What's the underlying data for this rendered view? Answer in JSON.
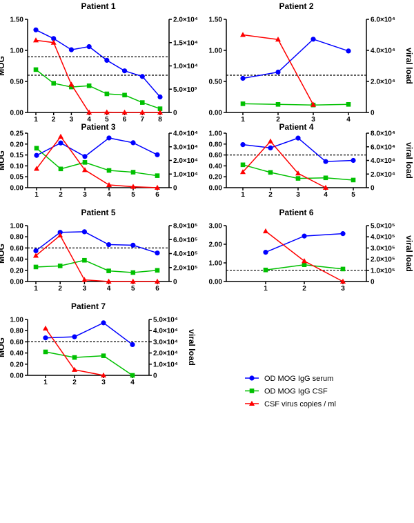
{
  "chart_data": {
    "type": "line",
    "legend": {
      "placement": "bottom-right",
      "entries": [
        {
          "name": "OD MOG IgG serum",
          "color": "#0000ff",
          "marker": "circle"
        },
        {
          "name": "OD MOG IgG CSF",
          "color": "#00c000",
          "marker": "square"
        },
        {
          "name": "CSF virus copies / ml",
          "color": "#ff0000",
          "marker": "triangle"
        }
      ]
    },
    "threshold": 0.6,
    "panels": [
      {
        "title": "Patient 1",
        "ylabel": "MOG",
        "y2label": "",
        "categories": [
          "1",
          "2",
          "3",
          "4",
          "5",
          "6",
          "7",
          "8"
        ],
        "ylim": [
          0,
          1.5
        ],
        "yticks": [
          0,
          0.5,
          1.0,
          1.5
        ],
        "ytick_labels": [
          "0.00",
          "0.50",
          "1.00",
          "1.50"
        ],
        "y2lim": [
          0,
          20000
        ],
        "y2ticks": [
          0,
          5000,
          10000,
          15000,
          20000
        ],
        "y2tick_labels": [
          "0",
          "5.0×10³",
          "1.0×10⁴",
          "1.5×10⁴",
          "2.0×10⁴"
        ],
        "serum": [
          1.33,
          1.19,
          1.01,
          1.06,
          0.84,
          0.67,
          0.58,
          0.25
        ],
        "csf": [
          0.69,
          0.47,
          0.41,
          0.43,
          0.3,
          0.28,
          0.16,
          0.06
        ],
        "virus": [
          15500,
          15000,
          6000,
          0,
          50,
          0,
          0,
          0
        ]
      },
      {
        "title": "Patient 2",
        "ylabel": "",
        "y2label": "viral load",
        "categories": [
          "1",
          "2",
          "3",
          "4"
        ],
        "ylim": [
          0,
          1.5
        ],
        "yticks": [
          0,
          0.5,
          1.0,
          1.5
        ],
        "ytick_labels": [
          "0.00",
          "0.50",
          "1.00",
          "1.50"
        ],
        "y2lim": [
          0,
          60000
        ],
        "y2ticks": [
          0,
          20000,
          40000,
          60000
        ],
        "y2tick_labels": [
          "0",
          "2.0×10⁴",
          "4.0×10⁴",
          "6.0×10⁴"
        ],
        "serum": [
          0.55,
          0.65,
          1.18,
          0.99
        ],
        "csf": [
          0.14,
          0.13,
          0.12,
          0.13
        ],
        "virus": [
          50000,
          47000,
          5000,
          null
        ]
      },
      {
        "title": "Patient 3",
        "ylabel": "MOG",
        "y2label": "",
        "categories": [
          "1",
          "2",
          "3",
          "4",
          "5",
          "6"
        ],
        "ylim": [
          0,
          0.25
        ],
        "yticks": [
          0,
          0.05,
          0.1,
          0.15,
          0.2,
          0.25
        ],
        "ytick_labels": [
          "0.00",
          "0.05",
          "0.10",
          "0.15",
          "0.20",
          "0.25"
        ],
        "y2lim": [
          0,
          40000
        ],
        "y2ticks": [
          0,
          10000,
          20000,
          30000,
          40000
        ],
        "y2tick_labels": [
          "0",
          "1.0×10⁴",
          "2.0×10⁴",
          "3.0×10⁴",
          "4.0×10⁴"
        ],
        "serum": [
          0.148,
          0.205,
          0.143,
          0.228,
          0.206,
          0.151
        ],
        "csf": [
          0.181,
          0.086,
          0.116,
          0.079,
          0.071,
          0.055
        ],
        "virus": [
          13900,
          37500,
          13000,
          2000,
          700,
          0
        ]
      },
      {
        "title": "Patient 4",
        "ylabel": "",
        "y2label": "viral load",
        "categories": [
          "1",
          "2",
          "3",
          "4",
          "5"
        ],
        "ylim": [
          0,
          1.0
        ],
        "yticks": [
          0,
          0.2,
          0.4,
          0.6,
          0.8,
          1.0
        ],
        "ytick_labels": [
          "0.00",
          "0.20",
          "0.40",
          "0.60",
          "0.80",
          "1.00"
        ],
        "y2lim": [
          0,
          80000
        ],
        "y2ticks": [
          0,
          20000,
          40000,
          60000,
          80000
        ],
        "y2tick_labels": [
          "0",
          "2.0×10⁴",
          "4.0×10⁴",
          "6.0×10⁴",
          "8.0×10⁴"
        ],
        "serum": [
          0.79,
          0.73,
          0.91,
          0.48,
          0.5
        ],
        "csf": [
          0.42,
          0.28,
          0.17,
          0.18,
          0.14
        ],
        "virus": [
          23000,
          68000,
          21000,
          0,
          null
        ]
      },
      {
        "title": "Patient 5",
        "ylabel": "MOG",
        "y2label": "",
        "categories": [
          "1",
          "2",
          "3",
          "4",
          "5",
          "6"
        ],
        "ylim": [
          0,
          1.0
        ],
        "yticks": [
          0,
          0.2,
          0.4,
          0.6,
          0.8,
          1.0
        ],
        "ytick_labels": [
          "0.00",
          "0.20",
          "0.40",
          "0.60",
          "0.80",
          "1.00"
        ],
        "y2lim": [
          0,
          800000
        ],
        "y2ticks": [
          0,
          200000,
          400000,
          600000,
          800000
        ],
        "y2tick_labels": [
          "0",
          "2.0×10⁵",
          "4.0×10⁵",
          "6.0×10⁵",
          "8.0×10⁵"
        ],
        "serum": [
          0.55,
          0.88,
          0.89,
          0.66,
          0.65,
          0.51
        ],
        "csf": [
          0.26,
          0.28,
          0.38,
          0.19,
          0.16,
          0.2
        ],
        "virus": [
          370000,
          660000,
          24000,
          0,
          0,
          0
        ]
      },
      {
        "title": "Patient 6",
        "ylabel": "",
        "y2label": "viral load",
        "categories": [
          "1",
          "2",
          "3"
        ],
        "ylim": [
          0,
          3.0
        ],
        "yticks": [
          0,
          1,
          2,
          3
        ],
        "ytick_labels": [
          "0.00",
          "1.00",
          "2.00",
          "3.00"
        ],
        "y2lim": [
          0,
          500000
        ],
        "y2ticks": [
          0,
          100000,
          200000,
          300000,
          400000,
          500000
        ],
        "y2tick_labels": [
          "0",
          "1.0×10⁵",
          "2.0×10⁵",
          "3.0×10⁵",
          "4.0×10⁵",
          "5.0×10⁵"
        ],
        "serum": [
          1.57,
          2.44,
          2.57
        ],
        "csf": [
          0.62,
          0.9,
          0.67
        ],
        "virus": [
          450000,
          183000,
          0
        ]
      },
      {
        "title": "Patient 7",
        "ylabel": "MOG",
        "y2label": "viral load",
        "categories": [
          "1",
          "2",
          "3",
          "4"
        ],
        "ylim": [
          0,
          1.0
        ],
        "yticks": [
          0,
          0.2,
          0.4,
          0.6,
          0.8,
          1.0
        ],
        "ytick_labels": [
          "0.00",
          "0.20",
          "0.40",
          "0.60",
          "0.80",
          "1.00"
        ],
        "y2lim": [
          0,
          50000
        ],
        "y2ticks": [
          0,
          10000,
          20000,
          30000,
          40000,
          50000
        ],
        "y2tick_labels": [
          "0",
          "1.0×10⁴",
          "2.0×10⁴",
          "3.0×10⁴",
          "4.0×10⁴",
          "5.0×10⁴"
        ],
        "serum": [
          0.67,
          0.69,
          0.94,
          0.55
        ],
        "csf": [
          0.42,
          0.32,
          0.35,
          0.0
        ],
        "virus": [
          42000,
          5000,
          0,
          null
        ]
      }
    ]
  }
}
